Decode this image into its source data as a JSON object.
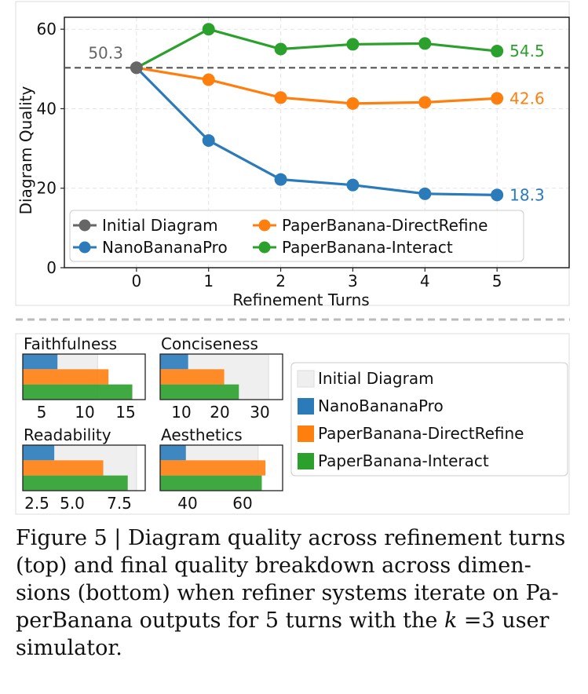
{
  "chart_data": [
    {
      "type": "line",
      "xlabel": "Refinement Turns",
      "ylabel": "Diagram Quality",
      "x": [
        0,
        1,
        2,
        3,
        4,
        5
      ],
      "xlim": [
        -1,
        6
      ],
      "ylim": [
        0,
        63
      ],
      "yticks": [
        0,
        20,
        40,
        60
      ],
      "grid": true,
      "legend_position": "bottom-left",
      "baseline": {
        "name": "Initial Diagram",
        "value": 50.3,
        "label": "50.3",
        "color": "#666666"
      },
      "series": [
        {
          "name": "NanoBananaPro",
          "color": "#2b7bba",
          "values": [
            50.3,
            32.0,
            22.2,
            20.8,
            18.6,
            18.3
          ],
          "end_label": "18.3"
        },
        {
          "name": "PaperBanana-DirectRefine",
          "color": "#ff7f0e",
          "values": [
            50.3,
            47.3,
            42.8,
            41.3,
            41.6,
            42.6
          ],
          "end_label": "42.6"
        },
        {
          "name": "PaperBanana-Interact",
          "color": "#2ca02c",
          "values": [
            50.3,
            60.0,
            55.0,
            56.2,
            56.4,
            54.5
          ],
          "end_label": "54.5"
        }
      ],
      "legend": [
        "Initial Diagram",
        "NanoBananaPro",
        "PaperBanana-DirectRefine",
        "PaperBanana-Interact"
      ]
    },
    {
      "type": "bar",
      "title": "Faithfulness",
      "orientation": "horizontal",
      "xlim": [
        0,
        18
      ],
      "xticks": [
        "5",
        "10",
        "15"
      ],
      "series": [
        {
          "name": "Initial Diagram",
          "value": 11.0
        },
        {
          "name": "NanoBananaPro",
          "value": 5.1
        },
        {
          "name": "PaperBanana-DirectRefine",
          "value": 12.6
        },
        {
          "name": "PaperBanana-Interact",
          "value": 16.1
        }
      ]
    },
    {
      "type": "bar",
      "title": "Conciseness",
      "orientation": "horizontal",
      "xlim": [
        0,
        35
      ],
      "xticks": [
        "10",
        "20",
        "30"
      ],
      "series": [
        {
          "name": "Initial Diagram",
          "value": 31.0
        },
        {
          "name": "NanoBananaPro",
          "value": 8.0
        },
        {
          "name": "PaperBanana-DirectRefine",
          "value": 18.3
        },
        {
          "name": "PaperBanana-Interact",
          "value": 22.5
        }
      ]
    },
    {
      "type": "bar",
      "title": "Readability",
      "orientation": "horizontal",
      "xlim": [
        2.0,
        9.0
      ],
      "xticks": [
        "2.5",
        "5.0",
        "7.5"
      ],
      "series": [
        {
          "name": "Initial Diagram",
          "value": 8.5
        },
        {
          "name": "NanoBananaPro",
          "value": 3.8
        },
        {
          "name": "PaperBanana-DirectRefine",
          "value": 6.6
        },
        {
          "name": "PaperBanana-Interact",
          "value": 8.0
        }
      ]
    },
    {
      "type": "bar",
      "title": "Aesthetics",
      "orientation": "horizontal",
      "xlim": [
        25,
        75
      ],
      "xticks": [
        "40",
        "60"
      ],
      "series": [
        {
          "name": "Initial Diagram",
          "value": 65.0
        },
        {
          "name": "NanoBananaPro",
          "value": 35.5
        },
        {
          "name": "PaperBanana-DirectRefine",
          "value": 68.0
        },
        {
          "name": "PaperBanana-Interact",
          "value": 66.5
        }
      ]
    }
  ],
  "bar_legend": [
    {
      "label": "Initial Diagram",
      "color": "#efefef"
    },
    {
      "label": "NanoBananaPro",
      "color": "#2b7bba"
    },
    {
      "label": "PaperBanana-DirectRefine",
      "color": "#ff7f0e"
    },
    {
      "label": "PaperBanana-Interact",
      "color": "#2ca02c"
    }
  ],
  "caption": {
    "line1": "Figure 5 | Diagram quality across refinement turns",
    "line2": "(top) and final quality breakdown across dimen-",
    "line3": "sions (bottom) when refiner systems iterate on Pa-",
    "line4_pre": "perBanana outputs for 5 turns with the ",
    "line4_k": "k",
    "line4_post": " =3 user",
    "line5": "simulator."
  }
}
